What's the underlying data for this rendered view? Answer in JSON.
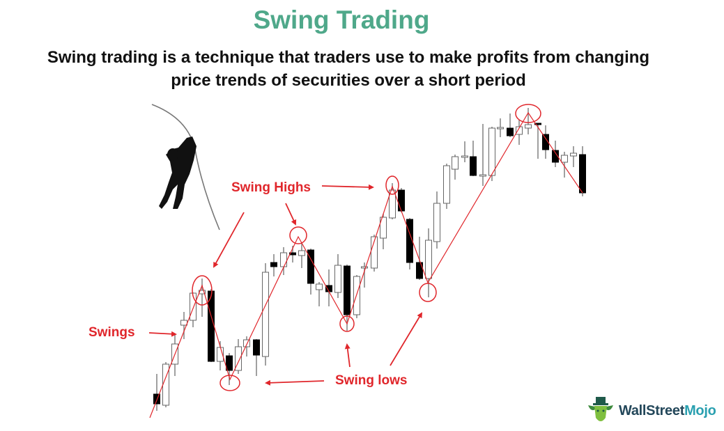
{
  "title": "Swing Trading",
  "subtitle_line1": "Swing trading is a technique that traders use to make profits from changing",
  "subtitle_line2": "price trends of securities over a short period",
  "labels": {
    "swing_highs": "Swing Highs",
    "swings": "Swings",
    "swing_lows": "Swing lows"
  },
  "logo": {
    "part1": "WallStreet",
    "part2": "Mojo"
  },
  "colors": {
    "title": "#4fa88a",
    "annotation": "#e0262b",
    "bearish_candle": "#000000",
    "bullish_candle": "#ffffff"
  },
  "icons": [
    "climber-on-rope-icon",
    "bull-mascot-logo-icon"
  ]
}
